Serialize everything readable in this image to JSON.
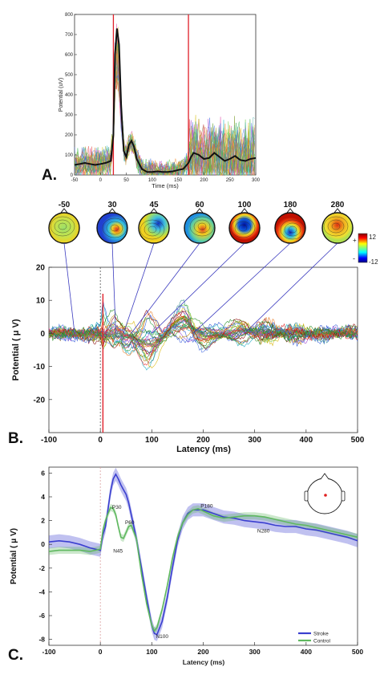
{
  "chart_data": [
    {
      "panel": "A.",
      "type": "line",
      "xlabel": "Time (ms)",
      "ylabel": "Potential (uV)",
      "xlim": [
        -50,
        300
      ],
      "ylim": [
        0,
        800
      ],
      "xticks": [
        -50,
        0,
        50,
        100,
        150,
        200,
        250,
        300
      ],
      "yticks": [
        0,
        100,
        200,
        300,
        400,
        500,
        600,
        700,
        800
      ],
      "markers_ms": [
        25,
        170
      ],
      "marker_color": "#e0202a",
      "mean_series": {
        "name": "mean",
        "x": [
          -50,
          -40,
          -30,
          -20,
          -10,
          0,
          10,
          20,
          25,
          28,
          32,
          36,
          40,
          45,
          50,
          55,
          60,
          65,
          70,
          80,
          90,
          100,
          110,
          120,
          130,
          140,
          150,
          160,
          170,
          175,
          180,
          190,
          200,
          210,
          220,
          230,
          240,
          250,
          260,
          270,
          280,
          290,
          300
        ],
        "y": [
          50,
          55,
          60,
          55,
          50,
          55,
          60,
          70,
          200,
          600,
          730,
          650,
          350,
          120,
          90,
          150,
          170,
          140,
          80,
          30,
          15,
          15,
          18,
          15,
          15,
          18,
          25,
          30,
          60,
          90,
          110,
          100,
          80,
          85,
          110,
          90,
          70,
          80,
          95,
          75,
          70,
          80,
          85
        ]
      }
    },
    {
      "panel": "B.",
      "type": "line",
      "xlabel": "Latency (ms)",
      "ylabel": "Potential ( μ V)",
      "xlim": [
        -100,
        500
      ],
      "ylim": [
        -30,
        20
      ],
      "xticks": [
        -100,
        0,
        100,
        200,
        300,
        400,
        500
      ],
      "yticks": [
        20,
        10,
        0,
        -10,
        -20
      ],
      "topomap_latencies": [
        "-50",
        "30",
        "45",
        "60",
        "100",
        "180",
        "280"
      ],
      "colorbar": {
        "max_label": "12",
        "min_label": "-12",
        "plus": "+",
        "minus": "-"
      },
      "envelope": {
        "x": [
          -100,
          -50,
          0,
          5,
          15,
          25,
          30,
          40,
          45,
          60,
          75,
          90,
          100,
          120,
          140,
          160,
          170,
          180,
          200,
          220,
          250,
          280,
          300,
          350,
          400,
          450,
          500
        ],
        "upper": [
          2,
          2,
          3,
          12,
          8,
          9,
          7,
          4,
          4,
          6,
          8,
          9,
          7,
          3,
          6,
          11,
          12,
          9,
          5,
          3,
          4,
          6,
          5,
          3,
          3,
          2,
          2
        ],
        "lower": [
          -2,
          -2,
          -3,
          -14,
          -9,
          -10,
          -7,
          -4,
          -6,
          -8,
          -12,
          -15,
          -13,
          -6,
          -2,
          -3,
          -5,
          -6,
          -6,
          -4,
          -5,
          -4,
          -4,
          -3,
          -3,
          -2,
          -2
        ]
      }
    },
    {
      "panel": "C.",
      "type": "line",
      "xlabel": "Latency (ms)",
      "ylabel": "Potential ( μ V)",
      "xlim": [
        -100,
        500
      ],
      "ylim": [
        -8.5,
        6.5
      ],
      "xticks": [
        -100,
        0,
        100,
        200,
        300,
        400,
        500
      ],
      "yticks": [
        6,
        4,
        2,
        0,
        -2,
        -4,
        -6,
        -8
      ],
      "peak_labels": [
        "P30",
        "P60",
        "N45",
        "P180",
        "N280",
        "N100"
      ],
      "legend": "bottom-right",
      "series": [
        {
          "name": "Stroke",
          "color": "#3a3fcf",
          "x": [
            -100,
            -80,
            -60,
            -40,
            -20,
            0,
            5,
            10,
            15,
            20,
            25,
            30,
            35,
            40,
            45,
            50,
            55,
            60,
            70,
            80,
            90,
            100,
            105,
            110,
            120,
            130,
            140,
            150,
            160,
            170,
            180,
            190,
            200,
            220,
            240,
            260,
            280,
            300,
            320,
            340,
            360,
            380,
            400,
            420,
            440,
            460,
            480,
            500
          ],
          "y": [
            0.2,
            0.3,
            0.2,
            0.0,
            -0.3,
            -0.5,
            0.8,
            1.5,
            3.0,
            4.5,
            5.5,
            5.9,
            5.5,
            5.0,
            4.6,
            4.2,
            3.5,
            2.5,
            0.5,
            -2.0,
            -4.5,
            -6.8,
            -7.5,
            -7.6,
            -6.5,
            -4.5,
            -2.0,
            0.3,
            1.8,
            2.6,
            2.9,
            2.9,
            2.9,
            2.6,
            2.3,
            2.2,
            2.0,
            1.9,
            1.8,
            1.6,
            1.5,
            1.5,
            1.3,
            1.2,
            1.0,
            0.8,
            0.6,
            0.3
          ]
        },
        {
          "name": "Control",
          "color": "#5fb85f",
          "x": [
            -100,
            -80,
            -60,
            -40,
            -20,
            0,
            5,
            10,
            15,
            20,
            25,
            30,
            35,
            40,
            45,
            50,
            55,
            60,
            70,
            80,
            90,
            100,
            105,
            110,
            120,
            130,
            140,
            150,
            160,
            170,
            180,
            190,
            200,
            220,
            240,
            260,
            280,
            300,
            320,
            340,
            360,
            380,
            400,
            420,
            440,
            460,
            480,
            500
          ],
          "y": [
            -0.6,
            -0.5,
            -0.5,
            -0.5,
            -0.6,
            -0.4,
            1.2,
            2.0,
            2.6,
            3.1,
            3.0,
            2.5,
            1.5,
            0.6,
            0.5,
            1.0,
            1.5,
            1.6,
            0.5,
            -2.5,
            -5.0,
            -6.8,
            -7.3,
            -7.0,
            -5.5,
            -3.5,
            -1.2,
            0.6,
            1.8,
            2.5,
            2.9,
            3.0,
            2.8,
            2.4,
            2.2,
            2.3,
            2.4,
            2.4,
            2.3,
            2.1,
            1.9,
            1.7,
            1.6,
            1.4,
            1.2,
            1.0,
            0.8,
            0.6
          ]
        }
      ]
    }
  ]
}
